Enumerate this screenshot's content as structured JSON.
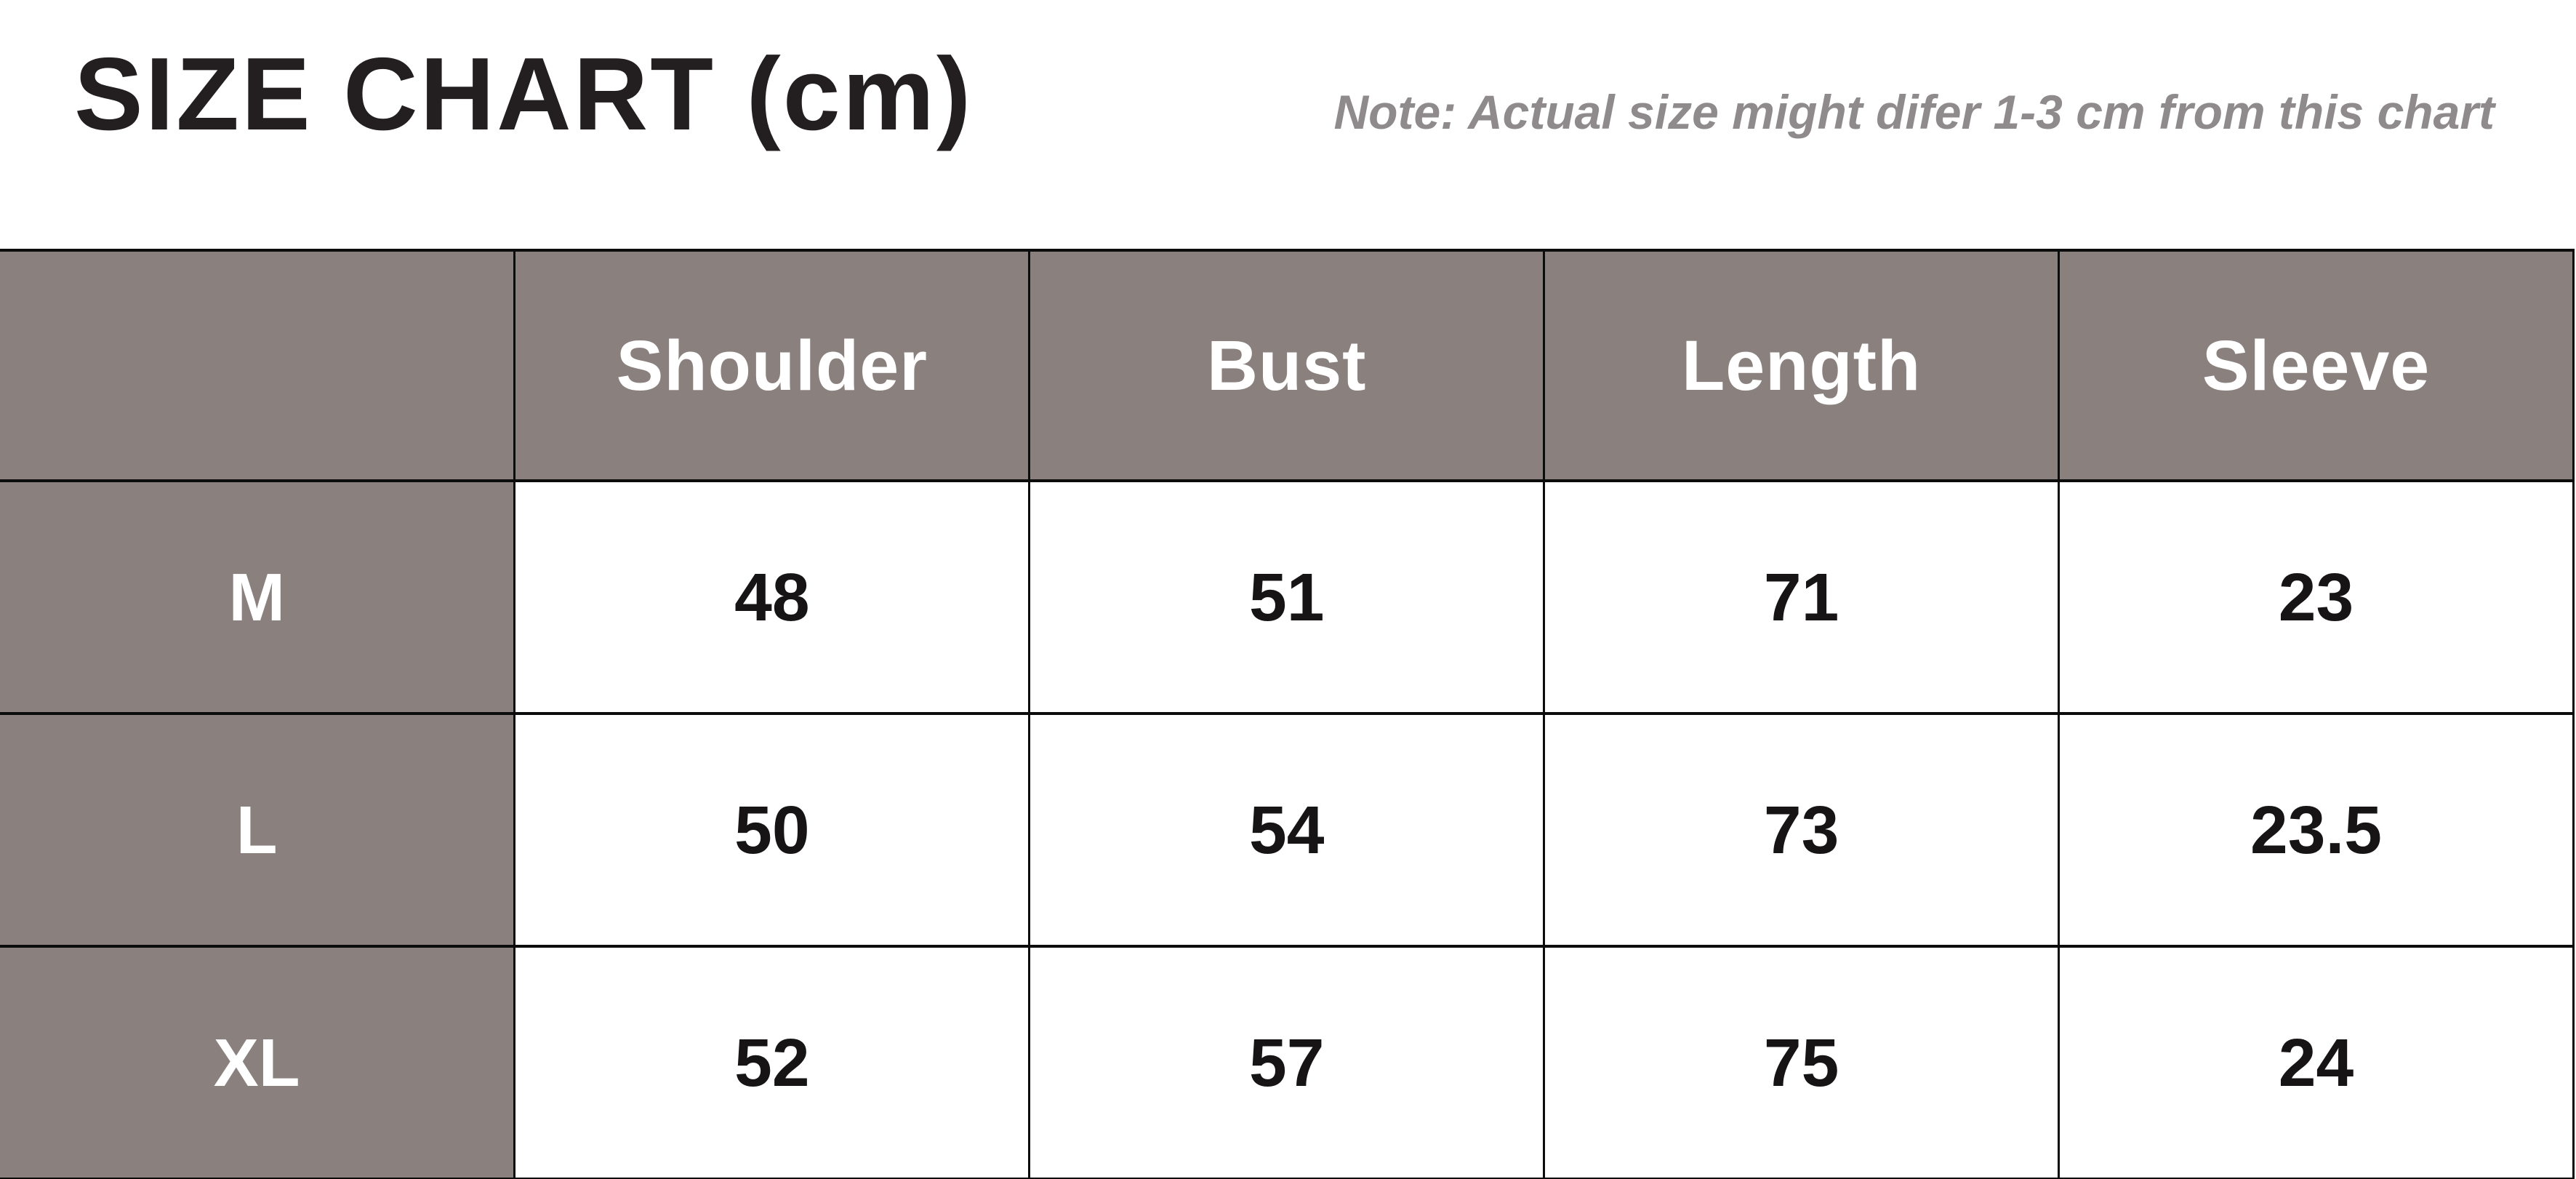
{
  "title": "SIZE CHART (cm)",
  "note": "Note: Actual size might difer 1-3 cm from this chart",
  "colors": {
    "header_bg": "#8a817f",
    "title_text": "#231f20",
    "note_text": "#8f8b8c",
    "value_text": "#161414",
    "grid_border": "#0c0c0c",
    "cell_bg": "#ffffff"
  },
  "chart_data": {
    "type": "table",
    "title": "SIZE CHART (cm)",
    "unit": "cm",
    "note": "Note: Actual size might difer 1-3 cm from this chart",
    "columns": [
      "",
      "Shoulder",
      "Bust",
      "Length",
      "Sleeve"
    ],
    "rows": [
      {
        "size": "M",
        "values": [
          48,
          51,
          71,
          23
        ]
      },
      {
        "size": "L",
        "values": [
          50,
          54,
          73,
          23.5
        ]
      },
      {
        "size": "XL",
        "values": [
          52,
          57,
          75,
          24
        ]
      }
    ]
  }
}
